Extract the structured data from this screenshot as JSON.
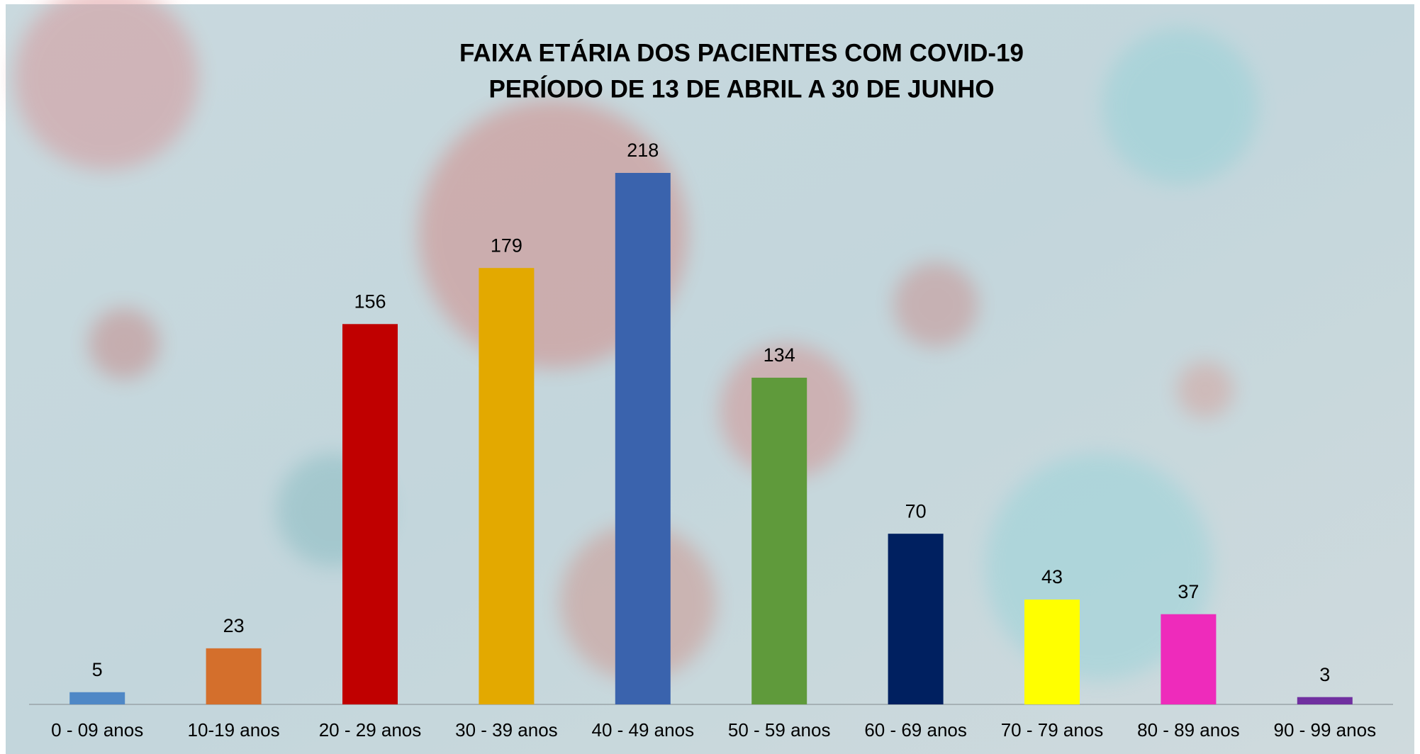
{
  "chart_data": {
    "type": "bar",
    "title": [
      "FAIXA ETÁRIA DOS PACIENTES COM COVID-19",
      "PERÍODO DE 13 DE ABRIL A 30 DE JUNHO"
    ],
    "categories": [
      "0 - 09 anos",
      "10-19 anos",
      "20 - 29 anos",
      "30 - 39 anos",
      "40 - 49 anos",
      "50 - 59 anos",
      "60 - 69 anos",
      "70 - 79 anos",
      "80 - 89 anos",
      "90 - 99 anos"
    ],
    "values": [
      5,
      23,
      156,
      179,
      218,
      134,
      70,
      43,
      37,
      3
    ],
    "colors": [
      "#4f88c6",
      "#d46f2c",
      "#c00000",
      "#e3a900",
      "#3a63ad",
      "#5f9a3b",
      "#002060",
      "#ffff00",
      "#ee2bbb",
      "#7030a0"
    ]
  }
}
